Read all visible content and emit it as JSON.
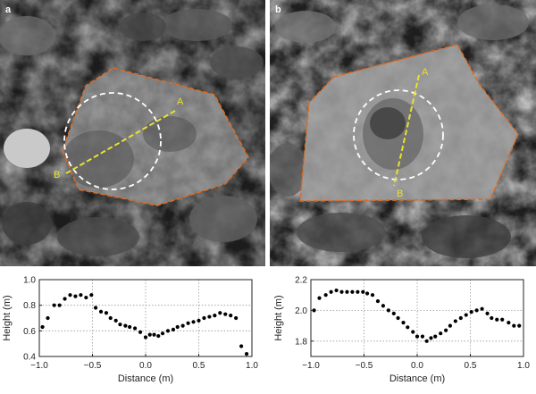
{
  "panels": [
    {
      "letter": "a",
      "point_a": "A",
      "point_b": "B"
    },
    {
      "letter": "b",
      "point_a": "A",
      "point_b": "B"
    }
  ],
  "chart_data": [
    {
      "type": "scatter",
      "panel": "a",
      "xlabel": "Distance (m)",
      "ylabel": "Height (m)",
      "xlim": [
        -1.0,
        1.0
      ],
      "ylim": [
        0.4,
        1.0
      ],
      "xticks": [
        "−1.0",
        "−0.5",
        "0.0",
        "0.5",
        "1.0"
      ],
      "yticks": [
        "0.4",
        "0.6",
        "0.8",
        "1.0"
      ],
      "grid": true,
      "series": [
        {
          "color": "#000000",
          "x": [
            -0.97,
            -0.92,
            -0.86,
            -0.81,
            -0.76,
            -0.71,
            -0.66,
            -0.61,
            -0.56,
            -0.51,
            -0.47,
            -0.42,
            -0.37,
            -0.33,
            -0.28,
            -0.24,
            -0.19,
            -0.15,
            -0.1,
            -0.05,
            0.0,
            0.04,
            0.08,
            0.12,
            0.16,
            0.21,
            0.26,
            0.3,
            0.35,
            0.4,
            0.45,
            0.5,
            0.55,
            0.6,
            0.65,
            0.7,
            0.75,
            0.8,
            0.85,
            0.9,
            0.95
          ],
          "y": [
            0.63,
            0.7,
            0.8,
            0.8,
            0.85,
            0.88,
            0.87,
            0.88,
            0.86,
            0.88,
            0.78,
            0.75,
            0.74,
            0.7,
            0.68,
            0.65,
            0.64,
            0.63,
            0.62,
            0.59,
            0.55,
            0.57,
            0.57,
            0.56,
            0.58,
            0.6,
            0.61,
            0.63,
            0.64,
            0.66,
            0.67,
            0.68,
            0.7,
            0.71,
            0.72,
            0.74,
            0.73,
            0.72,
            0.7,
            0.48,
            0.42
          ]
        }
      ]
    },
    {
      "type": "scatter",
      "panel": "b",
      "xlabel": "Distance (m)",
      "ylabel": "Height (m)",
      "xlim": [
        -1.0,
        1.0
      ],
      "ylim": [
        1.7,
        2.2
      ],
      "xticks": [
        "−1.0",
        "−0.5",
        "0.0",
        "0.5",
        "1.0"
      ],
      "yticks": [
        "1.8",
        "2.0",
        "2.2"
      ],
      "grid": true,
      "series": [
        {
          "color": "#000000",
          "x": [
            -0.97,
            -0.92,
            -0.86,
            -0.81,
            -0.76,
            -0.71,
            -0.66,
            -0.61,
            -0.56,
            -0.51,
            -0.47,
            -0.42,
            -0.37,
            -0.32,
            -0.27,
            -0.22,
            -0.18,
            -0.13,
            -0.09,
            -0.04,
            0.0,
            0.05,
            0.09,
            0.13,
            0.17,
            0.22,
            0.27,
            0.31,
            0.36,
            0.41,
            0.46,
            0.51,
            0.56,
            0.61,
            0.66,
            0.7,
            0.75,
            0.8,
            0.86,
            0.91,
            0.96
          ],
          "y": [
            2.0,
            2.08,
            2.1,
            2.12,
            2.13,
            2.12,
            2.12,
            2.12,
            2.12,
            2.12,
            2.11,
            2.1,
            2.06,
            2.03,
            2.0,
            1.98,
            1.95,
            1.92,
            1.89,
            1.86,
            1.83,
            1.83,
            1.8,
            1.82,
            1.83,
            1.85,
            1.87,
            1.9,
            1.93,
            1.95,
            1.97,
            1.99,
            2.0,
            2.01,
            1.98,
            1.95,
            1.94,
            1.94,
            1.92,
            1.9,
            1.9
          ]
        }
      ]
    }
  ]
}
